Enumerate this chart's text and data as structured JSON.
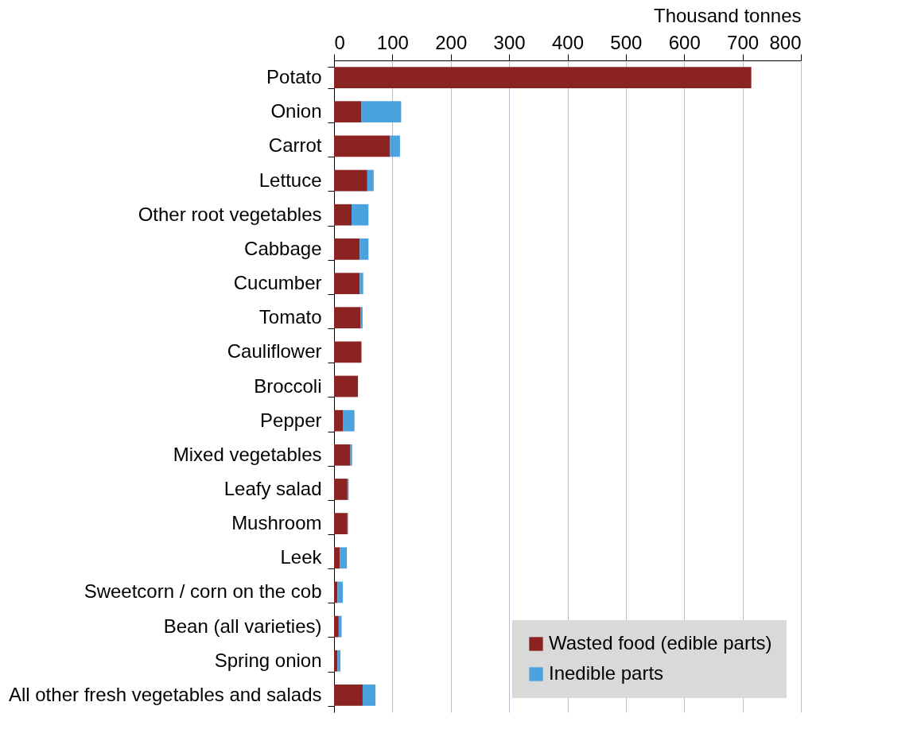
{
  "chart_data": {
    "type": "bar",
    "orientation": "horizontal",
    "stacked": true,
    "xlabel": "Thousand tonnes",
    "categories": [
      "Potato",
      "Onion",
      "Carrot",
      "Lettuce",
      "Other root vegetables",
      "Cabbage",
      "Cucumber",
      "Tomato",
      "Cauliflower",
      "Broccoli",
      "Pepper",
      "Mixed vegetables",
      "Leafy salad",
      "Mushroom",
      "Leek",
      "Sweetcorn / corn on the cob",
      "Bean (all varieties)",
      "Spring onion",
      "All other fresh vegetables and salads"
    ],
    "series": [
      {
        "name": "Wasted food (edible parts)",
        "color": "#8b2323",
        "values": [
          715,
          47,
          96,
          57,
          30,
          44,
          44,
          45,
          47,
          41,
          15,
          28,
          23,
          23,
          10,
          6,
          8,
          6,
          49
        ]
      },
      {
        "name": "Inedible parts",
        "color": "#4aa3df",
        "values": [
          0,
          68,
          17,
          11,
          29,
          15,
          6,
          4,
          0,
          0,
          20,
          3,
          2,
          1,
          12,
          9,
          5,
          5,
          22
        ]
      }
    ],
    "xlim": [
      0,
      800
    ],
    "xticks": [
      0,
      100,
      200,
      300,
      400,
      500,
      600,
      700,
      800
    ],
    "grid": "x",
    "legend": "bottom right"
  }
}
